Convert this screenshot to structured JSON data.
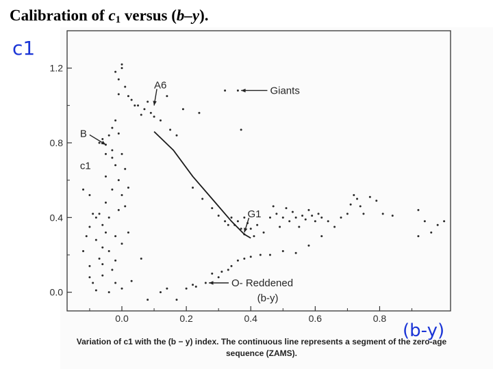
{
  "slide": {
    "title_main": "Calibration of ",
    "title_var": "c",
    "title_sub": "1",
    "title_rest": " versus (",
    "title_by": "b–y",
    "title_end": ")."
  },
  "chart_data": {
    "type": "scatter",
    "xlim": [
      -0.17,
      1.02
    ],
    "ylim": [
      -0.1,
      1.4
    ],
    "x_ticks": [
      "0.0",
      "0.2",
      "0.4",
      "0.6",
      "0.8"
    ],
    "x_tick_values": [
      0.0,
      0.2,
      0.4,
      0.6,
      0.8
    ],
    "y_ticks": [
      "1.2",
      "0.8",
      "0.4",
      "0.0"
    ],
    "y_tick_values": [
      1.2,
      0.8,
      0.4,
      0.0
    ],
    "inner_ylabel": "c1",
    "handwritten_ylabel": "c1",
    "handwritten_xlabel": "(b-y)",
    "grid": false,
    "points": [
      [
        -0.12,
        0.22
      ],
      [
        -0.11,
        0.3
      ],
      [
        -0.1,
        0.14
      ],
      [
        -0.1,
        0.35
      ],
      [
        -0.09,
        0.05
      ],
      [
        -0.08,
        0.01
      ],
      [
        -0.08,
        0.28
      ],
      [
        -0.07,
        0.42
      ],
      [
        -0.07,
        0.18
      ],
      [
        -0.06,
        0.36
      ],
      [
        -0.06,
        0.09
      ],
      [
        -0.05,
        0.48
      ],
      [
        -0.05,
        0.32
      ],
      [
        -0.05,
        0.62
      ],
      [
        -0.04,
        0.0
      ],
      [
        -0.04,
        0.22
      ],
      [
        -0.04,
        0.4
      ],
      [
        -0.03,
        0.55
      ],
      [
        -0.03,
        0.72
      ],
      [
        -0.03,
        0.12
      ],
      [
        -0.02,
        0.3
      ],
      [
        -0.02,
        0.68
      ],
      [
        -0.02,
        0.05
      ],
      [
        -0.01,
        0.44
      ],
      [
        -0.01,
        0.6
      ],
      [
        -0.01,
        0.85
      ],
      [
        0.0,
        0.02
      ],
      [
        0.0,
        0.26
      ],
      [
        0.0,
        0.52
      ],
      [
        0.0,
        0.74
      ],
      [
        0.01,
        0.46
      ],
      [
        0.01,
        0.66
      ],
      [
        0.02,
        0.32
      ],
      [
        0.02,
        0.56
      ],
      [
        -0.12,
        0.55
      ],
      [
        -0.1,
        0.52
      ],
      [
        -0.08,
        0.4
      ],
      [
        -0.06,
        0.24
      ],
      [
        -0.09,
        0.42
      ],
      [
        -0.07,
        0.8
      ],
      [
        -0.06,
        0.82
      ],
      [
        -0.05,
        0.79
      ],
      [
        -0.04,
        0.84
      ],
      [
        -0.03,
        0.88
      ],
      [
        -0.02,
        0.92
      ],
      [
        -0.03,
        0.76
      ],
      [
        -0.05,
        0.74
      ],
      [
        -0.02,
        1.18
      ],
      [
        -0.01,
        1.14
      ],
      [
        0.0,
        1.22
      ],
      [
        0.0,
        1.2
      ],
      [
        0.01,
        1.1
      ],
      [
        0.02,
        1.05
      ],
      [
        -0.01,
        1.06
      ],
      [
        0.03,
        1.03
      ],
      [
        0.05,
        1.0
      ],
      [
        0.07,
        0.98
      ],
      [
        0.09,
        0.96
      ],
      [
        0.1,
        0.94
      ],
      [
        0.12,
        0.92
      ],
      [
        0.06,
        0.95
      ],
      [
        0.15,
        0.87
      ],
      [
        0.17,
        0.84
      ],
      [
        0.14,
        1.05
      ],
      [
        0.19,
        0.98
      ],
      [
        0.24,
        0.96
      ],
      [
        0.32,
        1.08
      ],
      [
        0.36,
        1.08
      ],
      [
        0.37,
        0.87
      ],
      [
        0.04,
        1.0
      ],
      [
        0.06,
        0.18
      ],
      [
        0.03,
        0.06
      ],
      [
        0.08,
        1.02
      ],
      [
        0.22,
        0.56
      ],
      [
        0.25,
        0.5
      ],
      [
        0.28,
        0.45
      ],
      [
        0.3,
        0.41
      ],
      [
        0.32,
        0.38
      ],
      [
        0.33,
        0.36
      ],
      [
        0.34,
        0.4
      ],
      [
        0.35,
        0.36
      ],
      [
        0.36,
        0.38
      ],
      [
        0.37,
        0.34
      ],
      [
        0.38,
        0.31
      ],
      [
        0.38,
        0.4
      ],
      [
        0.39,
        0.37
      ],
      [
        0.4,
        0.34
      ],
      [
        0.41,
        0.3
      ],
      [
        0.42,
        0.36
      ],
      [
        0.44,
        0.32
      ],
      [
        0.46,
        0.4
      ],
      [
        0.47,
        0.46
      ],
      [
        0.48,
        0.42
      ],
      [
        0.49,
        0.35
      ],
      [
        0.5,
        0.4
      ],
      [
        0.51,
        0.45
      ],
      [
        0.52,
        0.38
      ],
      [
        0.53,
        0.43
      ],
      [
        0.54,
        0.4
      ],
      [
        0.55,
        0.35
      ],
      [
        0.56,
        0.41
      ],
      [
        0.57,
        0.39
      ],
      [
        0.58,
        0.44
      ],
      [
        0.59,
        0.41
      ],
      [
        0.6,
        0.38
      ],
      [
        0.61,
        0.42
      ],
      [
        0.62,
        0.4
      ],
      [
        0.64,
        0.38
      ],
      [
        0.66,
        0.35
      ],
      [
        0.68,
        0.4
      ],
      [
        0.7,
        0.42
      ],
      [
        0.71,
        0.47
      ],
      [
        0.72,
        0.52
      ],
      [
        0.73,
        0.5
      ],
      [
        0.74,
        0.46
      ],
      [
        0.75,
        0.42
      ],
      [
        0.77,
        0.51
      ],
      [
        0.79,
        0.49
      ],
      [
        0.81,
        0.42
      ],
      [
        0.84,
        0.41
      ],
      [
        0.92,
        0.3
      ],
      [
        0.92,
        0.44
      ],
      [
        0.94,
        0.38
      ],
      [
        0.96,
        0.32
      ],
      [
        0.98,
        0.36
      ],
      [
        1.0,
        0.38
      ],
      [
        0.62,
        0.3
      ],
      [
        0.58,
        0.25
      ],
      [
        0.12,
        0.0
      ],
      [
        0.17,
        -0.04
      ],
      [
        0.2,
        0.02
      ],
      [
        0.23,
        0.03
      ],
      [
        0.28,
        0.1
      ],
      [
        0.31,
        0.11
      ],
      [
        0.33,
        0.12
      ],
      [
        0.34,
        0.14
      ],
      [
        0.36,
        0.17
      ],
      [
        0.4,
        0.19
      ],
      [
        0.43,
        0.2
      ],
      [
        0.46,
        0.2
      ],
      [
        0.5,
        0.22
      ],
      [
        0.54,
        0.21
      ],
      [
        0.22,
        0.04
      ],
      [
        0.26,
        0.05
      ],
      [
        0.14,
        0.02
      ],
      [
        0.08,
        -0.04
      ],
      [
        0.3,
        0.08
      ],
      [
        0.38,
        0.18
      ],
      [
        -0.1,
        0.08
      ],
      [
        -0.06,
        0.15
      ],
      [
        -0.02,
        0.17
      ]
    ],
    "zams_curve": [
      [
        0.1,
        0.86
      ],
      [
        0.16,
        0.76
      ],
      [
        0.22,
        0.62
      ],
      [
        0.28,
        0.5
      ],
      [
        0.34,
        0.38
      ],
      [
        0.38,
        0.31
      ],
      [
        0.4,
        0.29
      ]
    ],
    "annotations": [
      {
        "id": "giants",
        "text": "Giants",
        "x": 0.46,
        "y": 1.08,
        "arrow_to": [
          0.37,
          1.08
        ]
      },
      {
        "id": "a6",
        "text": "A6",
        "x": 0.1,
        "y": 1.11,
        "arrow_to": [
          0.1,
          1.0
        ]
      },
      {
        "id": "b",
        "text": "B",
        "x": -0.13,
        "y": 0.85,
        "arrow_to": [
          -0.05,
          0.79
        ]
      },
      {
        "id": "g1",
        "text": "G1",
        "x": 0.39,
        "y": 0.42,
        "arrow_to": [
          0.38,
          0.32
        ]
      },
      {
        "id": "reddened",
        "text": "O- Reddened",
        "x": 0.34,
        "y": 0.05,
        "arrow_to": [
          0.27,
          0.05
        ]
      },
      {
        "id": "by",
        "text": "(b-y)",
        "x": 0.42,
        "y": -0.03
      }
    ]
  },
  "caption": {
    "line1": "Variation of c1 with the (b − y) index. The continuous line represents a segment of the zero-age",
    "line2": "sequence (ZAMS)."
  }
}
